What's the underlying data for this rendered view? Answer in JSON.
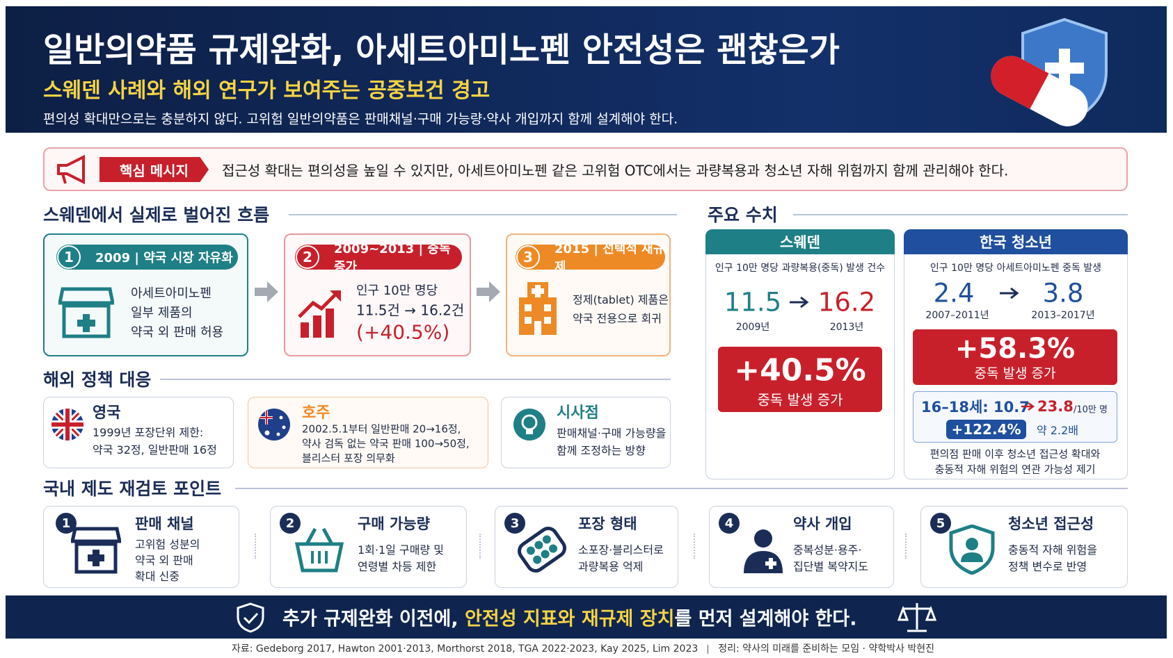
{
  "header": {
    "title": "일반의약품 규제완화, 아세트아미노펜 안전성은 괜찮은가",
    "subtitle": "스웨덴 사례와 해외 연구가 보여주는 공중보건 경고",
    "description": "편의성 확대만으로는 충분하지 않다. 고위험 일반의약품은 판매채널·구매 가능량·약사 개입까지 함께 설계해야 한다."
  },
  "key_message": {
    "badge": "핵심 메시지",
    "text": "접근성 확대는 편의성을 높일 수 있지만, 아세트아미노펜 같은 고위험 OTC에서는 과량복용과 청소년 자해 위험까지 함께 관리해야 한다."
  },
  "flow": {
    "title": "스웨덴에서 실제로 벌어진 흐름",
    "steps": [
      {
        "number": "1",
        "label": "2009 | 약국 시장 자유화",
        "lines": [
          "아세트아미노펜",
          "일부 제품의",
          "약국 외 판매 허용"
        ]
      },
      {
        "number": "2",
        "label": "2009~2013 | 중독 증가",
        "lines": [
          "인구 10만 명당",
          "11.5건 → 16.2건",
          "(+40.5%)"
        ]
      },
      {
        "number": "3",
        "label": "2015 | 선택적 재규제",
        "lines": [
          "정제(tablet) 제품은",
          "약국 전용으로 회귀"
        ]
      }
    ]
  },
  "policy": {
    "title": "해외 정책 대응",
    "items": [
      {
        "name": "영국",
        "lines": [
          "1999년 포장단위 제한:",
          "약국 32정, 일반판매 16정"
        ]
      },
      {
        "name": "호주",
        "lines": [
          "2002.5.1부터 일반판매 20→16정,",
          "약사 검독 없는 약국 판매 100→50정,",
          "블리스터 포장 의무화"
        ]
      },
      {
        "name": "시사점",
        "lines": [
          "판매채널·구매 가능량을",
          "함께 조정하는 방향"
        ]
      }
    ]
  },
  "stats": {
    "title": "주요 수치",
    "sweden": {
      "header": "스웨덴",
      "caption": "인구 10만 명당 과량복용(중독) 발생 건수",
      "from": "11.5",
      "to": "16.2",
      "from_label": "2009년",
      "to_label": "2013년",
      "change": "+40.5%",
      "change_label": "중독 발생 증가"
    },
    "korea": {
      "header": "한국 청소년",
      "caption": "인구 10만 명당 아세트아미노펜 중독 발생",
      "from": "2.4",
      "to": "3.8",
      "from_label": "2007–2011년",
      "to_label": "2013–2017년",
      "change": "+58.3%",
      "change_label": "중독 발생 증가",
      "age_label": "16–18세: 10.7",
      "age_to": "23.8",
      "age_unit": "/10만 명",
      "age_change": "+122.4%",
      "age_ratio": "약 2.2배",
      "note": [
        "편의점 판매 이후 청소년 접근성 확대와",
        "충동적 자해 위험의 연관 가능성 제기"
      ]
    }
  },
  "review": {
    "title": "국내 제도 재검토 포인트",
    "items": [
      {
        "number": "1",
        "name": "판매 채널",
        "lines": [
          "고위험 성분의",
          "약국 외 판매",
          "확대 신중"
        ]
      },
      {
        "number": "2",
        "name": "구매 가능량",
        "lines": [
          "1회·1일 구매량 및",
          "연령별 차등 제한"
        ]
      },
      {
        "number": "3",
        "name": "포장 형태",
        "lines": [
          "소포장·블리스터로",
          "과량복용 억제"
        ]
      },
      {
        "number": "4",
        "name": "약사 개입",
        "lines": [
          "중복성분·용주·",
          "집단별 복약지도"
        ]
      },
      {
        "number": "5",
        "name": "청소년 접근성",
        "lines": [
          "충동적 자해 위험을",
          "정책 변수로 반영"
        ]
      }
    ]
  },
  "footer": {
    "banner_before": "추가 규제완화 이전에, ",
    "banner_highlight": "안전성 지표와 재규제 장치",
    "banner_after": "를 먼저 설계해야 한다.",
    "sources": "자료: Gedeborg 2017, Hawton 2001·2013, Morthorst 2018, TGA 2022·2023, Kay 2025, Lim 2023",
    "credit": "정리: 약사의 미래를 준비하는 모임 · 약학박사 박현진"
  }
}
